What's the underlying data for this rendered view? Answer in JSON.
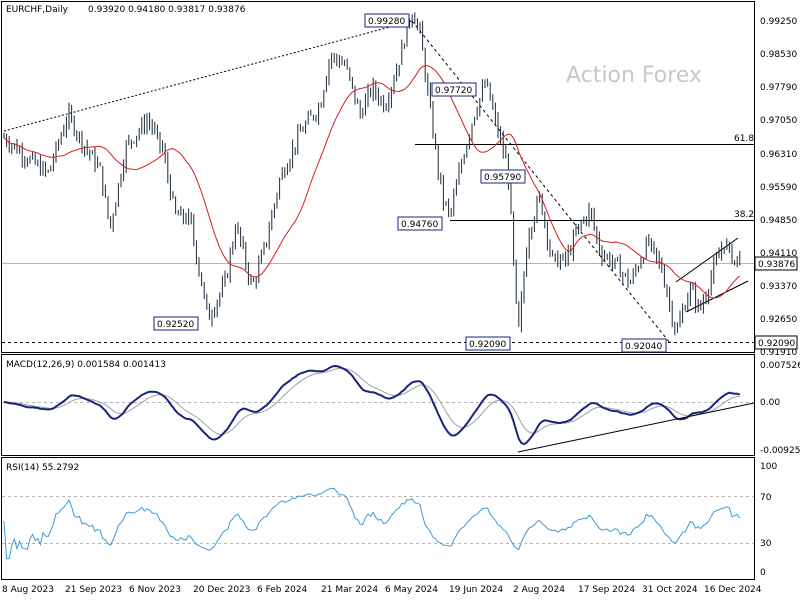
{
  "chart_data": [
    {
      "type": "candlestick",
      "symbol": "EURCHF,Daily",
      "ohlc_text": "0.93920 0.94180 0.93817 0.93876",
      "watermark": "Action Forex",
      "ylim": [
        0.9179,
        0.9945
      ],
      "y_ticks": [
        "0.99250",
        "0.98530",
        "0.97790",
        "0.97050",
        "0.96310",
        "0.95590",
        "0.94850",
        "0.94110",
        "0.93370",
        "0.92650",
        "0.91910"
      ],
      "current_price": "0.93876",
      "support_level": "0.92090",
      "price_labels": [
        {
          "label": "0.99280",
          "value": 0.9928
        },
        {
          "label": "0.97720",
          "value": 0.9772
        },
        {
          "label": "0.95790",
          "value": 0.9579
        },
        {
          "label": "0.94760",
          "value": 0.9476
        },
        {
          "label": "0.92520",
          "value": 0.9252
        },
        {
          "label": "0.92090",
          "value": 0.9209
        },
        {
          "label": "0.92040",
          "value": 0.9204
        }
      ],
      "fib_levels": [
        {
          "label": "61.8",
          "value": 0.965
        },
        {
          "label": "38.2",
          "value": 0.9476
        }
      ],
      "moving_average": "red",
      "x_ticks": [
        "8 Aug 2023",
        "21 Sep 2023",
        "6 Nov 2023",
        "20 Dec 2023",
        "6 Feb 2024",
        "21 Mar 2024",
        "6 May 2024",
        "19 Jun 2024",
        "2 Aug 2024",
        "17 Sep 2024",
        "31 Oct 2024",
        "16 Dec 2024"
      ]
    },
    {
      "type": "line",
      "title": "MACD(12,26,9) 0.001584 0.001413",
      "y_ticks": [
        "0.007526",
        "0.00",
        "-0.009252"
      ],
      "series_colors": [
        "#1a237e",
        "#a0a0a0"
      ]
    },
    {
      "type": "line",
      "title": "RSI(14) 55.2792",
      "y_ticks": [
        "100",
        "70",
        "30",
        "0"
      ],
      "ylim": [
        0,
        100
      ],
      "levels": [
        70,
        30
      ],
      "series_color": "#3d9ad8"
    }
  ]
}
